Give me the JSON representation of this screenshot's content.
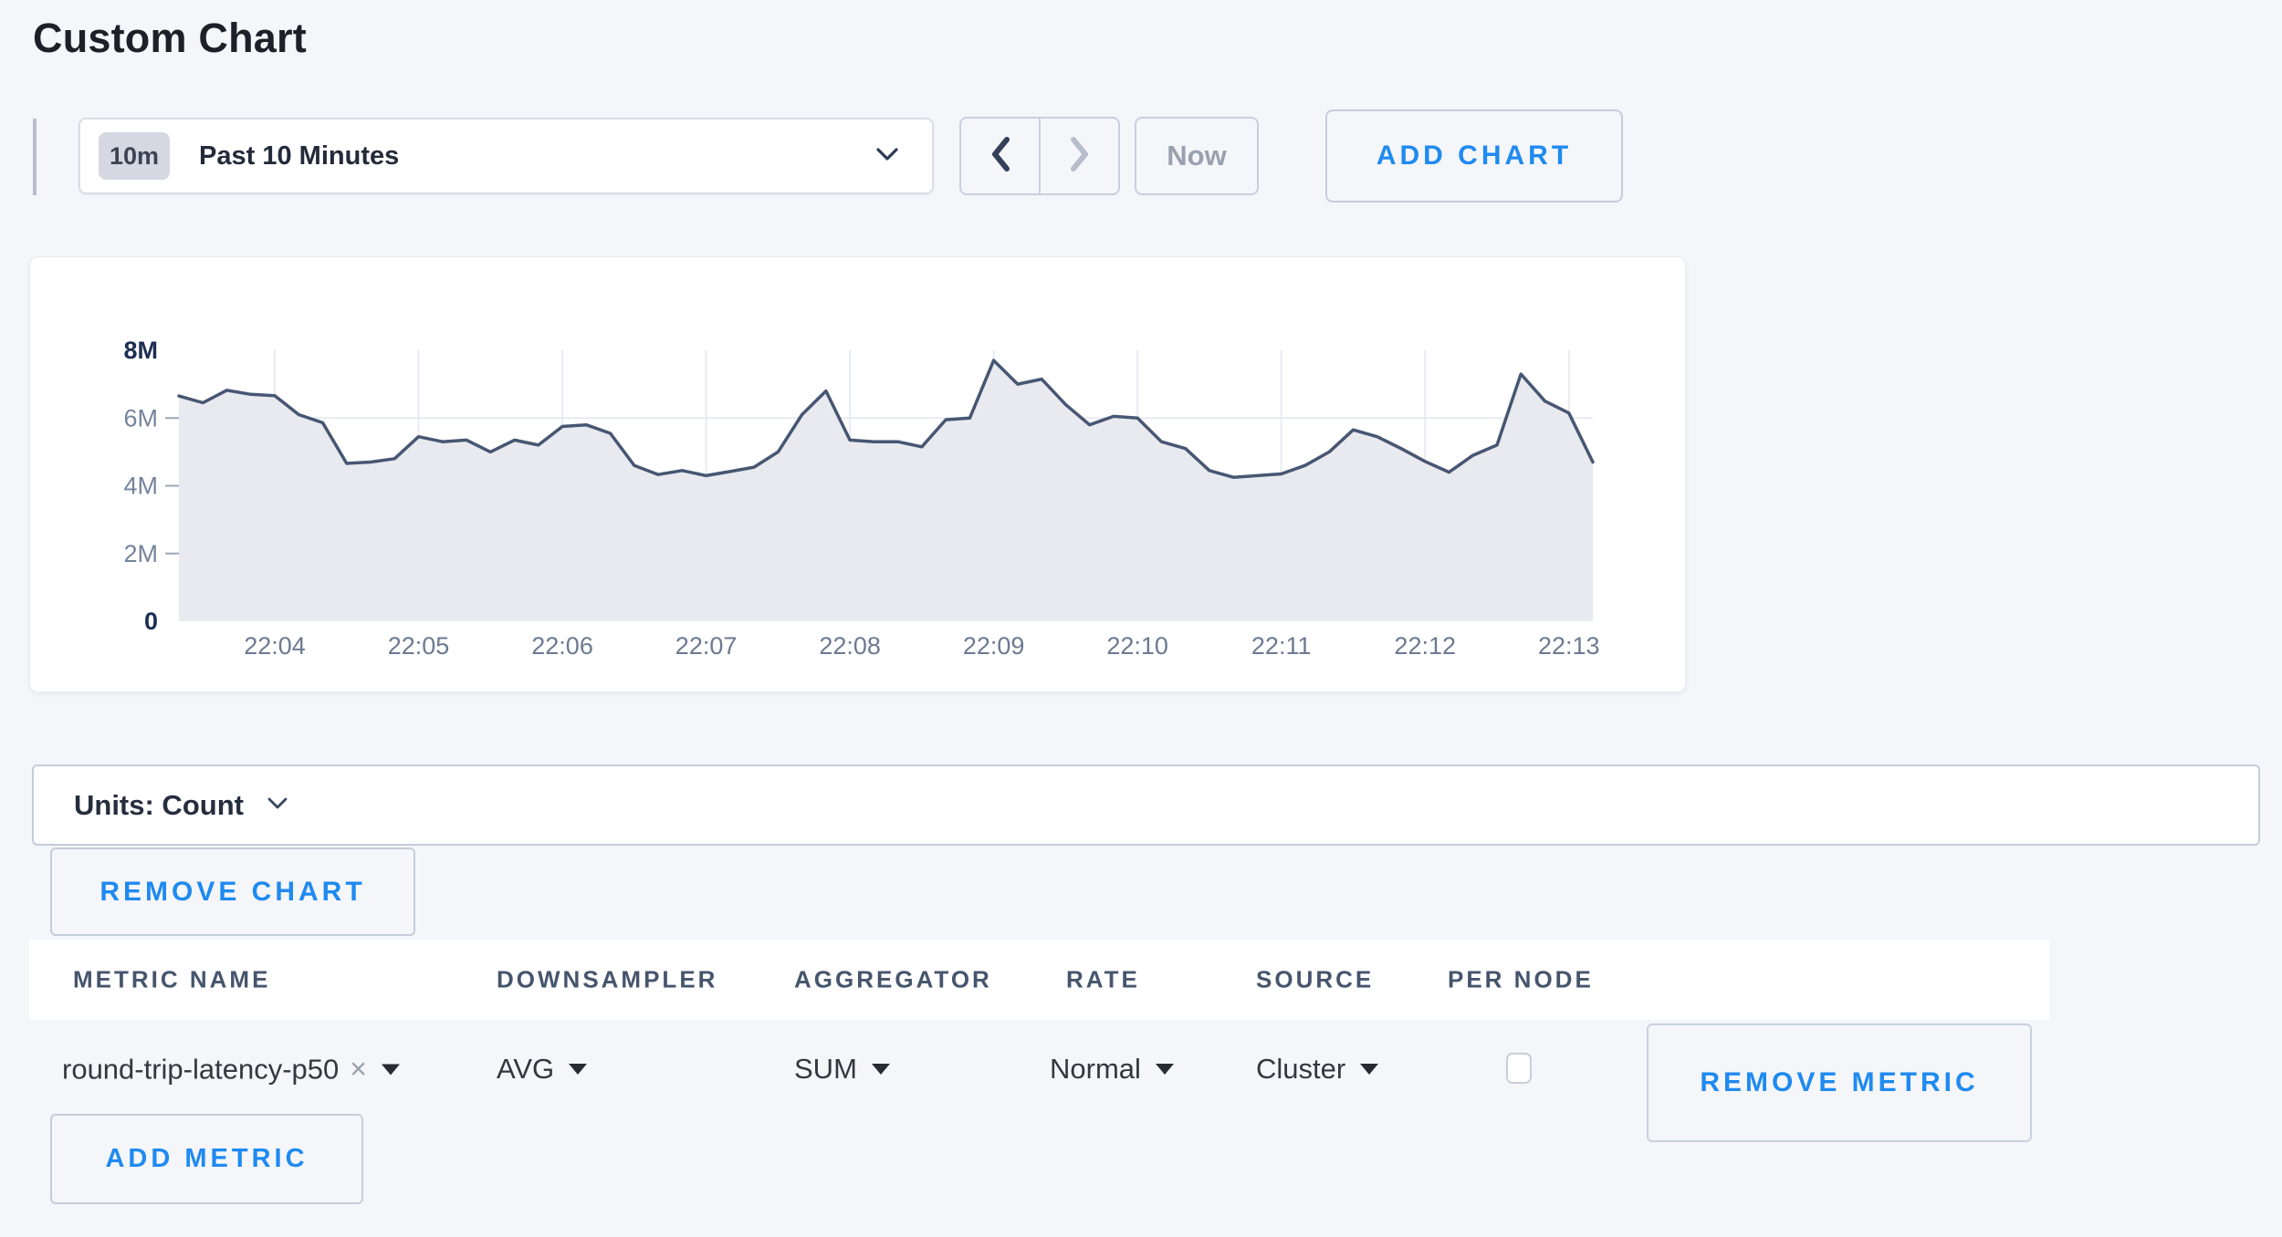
{
  "page": {
    "title": "Custom Chart"
  },
  "colors": {
    "accent_blue": "#1f8af0",
    "line": "#475672",
    "fill": "#e9eaef",
    "grid": "#e8ebf1",
    "axis_text": "#74849c",
    "axis_text_bold": "#1c2e52",
    "x_axis_text": "#6b7a92"
  },
  "toolbar": {
    "time_range": {
      "badge": "10m",
      "label": "Past 10 Minutes"
    },
    "now_label": "Now",
    "add_chart_label": "ADD CHART"
  },
  "units_bar": {
    "label": "Units: Count"
  },
  "remove_chart_label": "REMOVE CHART",
  "metrics_table": {
    "headers": [
      "METRIC NAME",
      "DOWNSAMPLER",
      "AGGREGATOR",
      "RATE",
      "SOURCE",
      "PER NODE"
    ],
    "row": {
      "metric_name": "round-trip-latency-p50",
      "clear_icon": "×",
      "downsampler": "AVG",
      "aggregator": "SUM",
      "rate": "Normal",
      "source": "Cluster",
      "per_node_checked": false,
      "remove_metric_label": "REMOVE METRIC"
    },
    "add_metric_label": "ADD METRIC"
  },
  "chart_data": {
    "type": "area",
    "title": "",
    "series_name": "round-trip-latency-p50 (AVG, SUM, Cluster)",
    "unit": "count",
    "value_scale": 1000000,
    "x_start": "22:03:20",
    "interval_seconds": 10,
    "values": [
      6.65,
      6.45,
      6.82,
      6.7,
      6.66,
      6.1,
      5.86,
      4.66,
      4.7,
      4.8,
      5.45,
      5.3,
      5.35,
      5.0,
      5.35,
      5.2,
      5.75,
      5.8,
      5.55,
      4.6,
      4.33,
      4.45,
      4.3,
      4.42,
      4.55,
      5.0,
      6.1,
      6.8,
      5.35,
      5.3,
      5.3,
      5.15,
      5.95,
      6.0,
      7.7,
      7.0,
      7.15,
      6.4,
      5.8,
      6.05,
      6.0,
      5.3,
      5.1,
      4.45,
      4.25,
      4.3,
      4.35,
      4.6,
      5.0,
      5.65,
      5.45,
      5.1,
      4.72,
      4.4,
      4.9,
      5.2,
      7.3,
      6.5,
      6.15,
      4.7
    ],
    "ylim": [
      0,
      8
    ],
    "y_tick_values": [
      0,
      2,
      4,
      6,
      8
    ],
    "y_tick_labels": [
      "0",
      "2M",
      "4M",
      "6M",
      "8M"
    ],
    "y_tick_bold": [
      true,
      false,
      false,
      false,
      true
    ],
    "h_grid_values": [
      2,
      4,
      6
    ],
    "x_tick_labels": [
      "22:04",
      "22:05",
      "22:06",
      "22:07",
      "22:08",
      "22:09",
      "22:10",
      "22:11",
      "22:12",
      "22:13"
    ],
    "x_tick_first_index": 4,
    "x_tick_every": 6,
    "grid": true,
    "legend": false
  }
}
